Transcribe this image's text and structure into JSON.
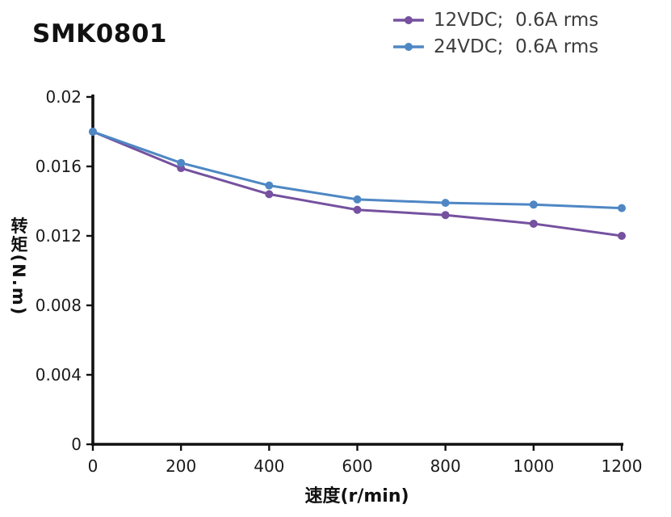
{
  "title": "SMK0801",
  "colors": {
    "series_12vdc": "#75519f",
    "series_24vdc": "#4e87c4",
    "axis": "#111111",
    "background": "#ffffff",
    "tick_text": "#1a1a1a"
  },
  "legend": [
    {
      "label": "12VDC;  0.6A rms",
      "color": "#75519f"
    },
    {
      "label": "24VDC;  0.6A rms",
      "color": "#4e87c4"
    }
  ],
  "chart_data": {
    "type": "line",
    "title": "SMK0801",
    "xlabel": "速度(r/min)",
    "ylabel": "转矩(N.m)",
    "x": [
      0,
      200,
      400,
      600,
      800,
      1000,
      1200
    ],
    "xlim": [
      0,
      1200
    ],
    "ylim": [
      0,
      0.02
    ],
    "xticks": [
      0,
      200,
      400,
      600,
      800,
      1000,
      1200
    ],
    "xtick_labels": [
      "0",
      "200",
      "400",
      "600",
      "800",
      "1000",
      "1200"
    ],
    "yticks": [
      0,
      0.004,
      0.008,
      0.012,
      0.016,
      0.02
    ],
    "ytick_labels": [
      "0",
      "0.004",
      "0.008",
      "0.012",
      "0.016",
      "0.02"
    ],
    "grid": false,
    "legend_position": "top-right",
    "marker": "circle",
    "series": [
      {
        "name": "12VDC;  0.6A rms",
        "color": "#75519f",
        "values": [
          0.018,
          0.0159,
          0.0144,
          0.0135,
          0.0132,
          0.0127,
          0.012
        ]
      },
      {
        "name": "24VDC;  0.6A rms",
        "color": "#4e87c4",
        "values": [
          0.018,
          0.0162,
          0.0149,
          0.0141,
          0.0139,
          0.0138,
          0.0136
        ]
      }
    ]
  }
}
